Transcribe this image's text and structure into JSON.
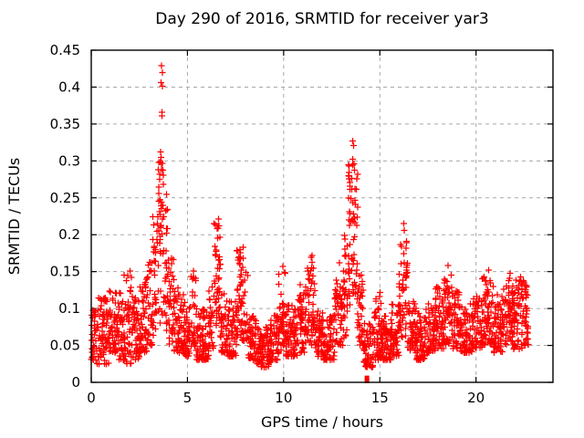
{
  "title": "Day 290 of 2016, SRMTID for receiver yar3",
  "colors": {
    "marker": "#ff0000",
    "grid": "#a8a8a8",
    "border": "#000000",
    "background": "#ffffff",
    "text": "#000000"
  },
  "chart_data": {
    "type": "scatter",
    "title": "Day 290 of 2016, SRMTID for receiver yar3",
    "xlabel": "GPS time / hours",
    "ylabel": "SRMTID / TECUs",
    "xlim": [
      0,
      24
    ],
    "ylim": [
      0,
      0.45
    ],
    "x_tick_values": [
      0,
      5,
      10,
      15,
      20
    ],
    "x_tick_labels": [
      "0",
      "5",
      "10",
      "15",
      "20"
    ],
    "y_tick_values": [
      0,
      0.05,
      0.1,
      0.15,
      0.2,
      0.25,
      0.3,
      0.35,
      0.4,
      0.45
    ],
    "y_tick_labels": [
      "0",
      "0.05",
      "0.1",
      "0.15",
      "0.2",
      "0.25",
      "0.3",
      "0.35",
      "0.4",
      "0.45"
    ],
    "grid": true,
    "legend": "none",
    "marker": "plus",
    "marker_color": "#ff0000",
    "series_name": "SRMTID",
    "points_per_hour": 115,
    "seed": 7,
    "data_start_hour": 0.0,
    "data_end_hour": 22.75,
    "envelope_segments": [
      [
        0.0,
        0.3,
        0.03,
        0.1,
        1.5
      ],
      [
        0.3,
        0.9,
        0.025,
        0.115,
        1.6
      ],
      [
        0.9,
        1.3,
        0.04,
        0.125,
        1.5
      ],
      [
        1.3,
        1.7,
        0.03,
        0.13,
        1.6
      ],
      [
        1.7,
        2.1,
        0.025,
        0.15,
        1.6
      ],
      [
        2.1,
        2.5,
        0.03,
        0.12,
        1.6
      ],
      [
        2.5,
        2.9,
        0.04,
        0.14,
        1.5
      ],
      [
        2.9,
        3.2,
        0.05,
        0.17,
        1.4
      ],
      [
        3.2,
        3.45,
        0.06,
        0.23,
        1.2
      ],
      [
        3.45,
        3.8,
        0.08,
        0.3,
        1.0
      ],
      [
        3.8,
        4.0,
        0.07,
        0.26,
        1.2
      ],
      [
        4.0,
        4.3,
        0.05,
        0.18,
        1.4
      ],
      [
        4.3,
        4.8,
        0.04,
        0.13,
        1.5
      ],
      [
        4.8,
        5.2,
        0.035,
        0.11,
        1.5
      ],
      [
        5.2,
        5.45,
        0.04,
        0.15,
        1.2
      ],
      [
        5.45,
        6.1,
        0.03,
        0.1,
        1.5
      ],
      [
        6.1,
        6.35,
        0.04,
        0.13,
        1.3
      ],
      [
        6.35,
        6.75,
        0.06,
        0.215,
        1.0
      ],
      [
        6.75,
        7.1,
        0.04,
        0.12,
        1.4
      ],
      [
        7.1,
        7.55,
        0.035,
        0.11,
        1.5
      ],
      [
        7.55,
        8.15,
        0.055,
        0.18,
        1.1
      ],
      [
        8.15,
        8.6,
        0.03,
        0.09,
        1.5
      ],
      [
        8.6,
        9.3,
        0.02,
        0.075,
        1.5
      ],
      [
        9.3,
        9.75,
        0.03,
        0.095,
        1.5
      ],
      [
        9.75,
        10.1,
        0.04,
        0.155,
        1.2
      ],
      [
        10.1,
        10.75,
        0.035,
        0.105,
        1.5
      ],
      [
        10.75,
        11.2,
        0.04,
        0.135,
        1.3
      ],
      [
        11.2,
        11.65,
        0.05,
        0.17,
        1.2
      ],
      [
        11.65,
        12.1,
        0.035,
        0.1,
        1.5
      ],
      [
        12.1,
        12.65,
        0.03,
        0.095,
        1.5
      ],
      [
        12.65,
        13.1,
        0.05,
        0.14,
        1.3
      ],
      [
        13.1,
        13.35,
        0.06,
        0.2,
        1.1
      ],
      [
        13.35,
        13.85,
        0.09,
        0.3,
        1.0
      ],
      [
        13.85,
        14.15,
        0.05,
        0.15,
        1.3
      ],
      [
        14.15,
        14.65,
        0.02,
        0.08,
        1.5
      ],
      [
        14.65,
        15.1,
        0.03,
        0.12,
        1.4
      ],
      [
        15.1,
        15.6,
        0.03,
        0.1,
        1.5
      ],
      [
        15.6,
        16.0,
        0.035,
        0.11,
        1.4
      ],
      [
        16.0,
        16.45,
        0.06,
        0.205,
        1.0
      ],
      [
        16.45,
        16.9,
        0.04,
        0.11,
        1.4
      ],
      [
        16.9,
        17.4,
        0.03,
        0.095,
        1.5
      ],
      [
        17.4,
        17.9,
        0.04,
        0.115,
        1.4
      ],
      [
        17.9,
        18.35,
        0.045,
        0.13,
        1.3
      ],
      [
        18.35,
        18.75,
        0.05,
        0.155,
        1.2
      ],
      [
        18.75,
        19.2,
        0.045,
        0.125,
        1.4
      ],
      [
        19.2,
        19.8,
        0.04,
        0.11,
        1.5
      ],
      [
        19.8,
        20.3,
        0.045,
        0.12,
        1.4
      ],
      [
        20.3,
        20.9,
        0.05,
        0.15,
        1.2
      ],
      [
        20.9,
        21.4,
        0.04,
        0.12,
        1.4
      ],
      [
        21.4,
        21.9,
        0.05,
        0.145,
        1.2
      ],
      [
        21.9,
        22.4,
        0.045,
        0.14,
        1.2
      ],
      [
        22.4,
        22.75,
        0.05,
        0.14,
        1.2
      ]
    ],
    "outlier_points": [
      [
        3.66,
        0.429
      ],
      [
        3.69,
        0.42
      ],
      [
        3.64,
        0.406
      ],
      [
        3.7,
        0.401
      ],
      [
        3.68,
        0.366
      ],
      [
        3.67,
        0.361
      ],
      [
        3.6,
        0.312
      ],
      [
        3.63,
        0.305
      ],
      [
        3.71,
        0.297
      ],
      [
        3.56,
        0.282
      ],
      [
        3.74,
        0.268
      ],
      [
        3.52,
        0.256
      ],
      [
        3.58,
        0.247
      ],
      [
        3.62,
        0.239
      ],
      [
        13.6,
        0.327
      ],
      [
        13.63,
        0.321
      ],
      [
        13.58,
        0.302
      ],
      [
        13.66,
        0.296
      ],
      [
        13.55,
        0.276
      ],
      [
        13.7,
        0.262
      ],
      [
        13.5,
        0.249
      ],
      [
        13.73,
        0.241
      ],
      [
        13.45,
        0.229
      ],
      [
        13.62,
        0.218
      ],
      [
        6.62,
        0.221
      ],
      [
        6.6,
        0.212
      ],
      [
        16.25,
        0.215
      ],
      [
        16.28,
        0.206
      ],
      [
        9.96,
        0.157
      ],
      [
        11.47,
        0.172
      ],
      [
        2.02,
        0.151
      ],
      [
        5.32,
        0.151
      ],
      [
        7.9,
        0.183
      ],
      [
        18.55,
        0.158
      ],
      [
        20.65,
        0.152
      ],
      [
        21.78,
        0.148
      ],
      [
        22.32,
        0.143
      ],
      [
        12.9,
        0.162
      ],
      [
        15.0,
        0.122
      ]
    ],
    "square_points": [
      [
        14.33,
        0.002
      ],
      [
        14.33,
        0.006
      ]
    ]
  }
}
